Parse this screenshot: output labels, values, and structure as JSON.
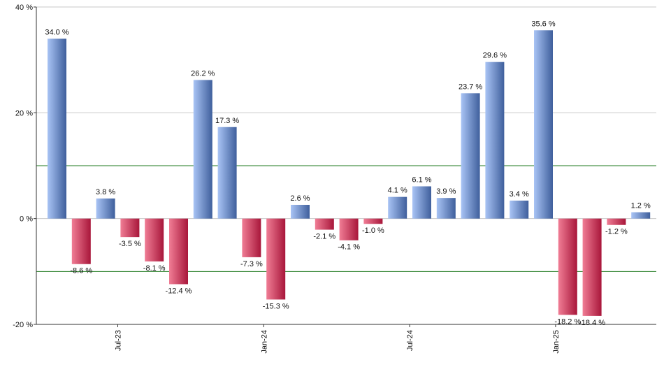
{
  "chart_data": {
    "type": "bar",
    "title": "",
    "xlabel": "",
    "ylabel": "",
    "ylim": [
      -20,
      40
    ],
    "yticks": [
      40,
      20,
      0,
      -20
    ],
    "ytick_labels": [
      "40 %",
      "20 %",
      "0 %",
      "-20 %"
    ],
    "value_suffix": " %",
    "reference_lines": [
      10,
      -10
    ],
    "x_tick_labels": [
      {
        "label": "Jul-23",
        "after_bar": 2
      },
      {
        "label": "Jan-24",
        "after_bar": 8
      },
      {
        "label": "Jul-24",
        "after_bar": 14
      },
      {
        "label": "Jan-25",
        "after_bar": 20
      }
    ],
    "values": [
      34.0,
      -8.6,
      3.8,
      -3.5,
      -8.1,
      -12.4,
      26.2,
      17.3,
      -7.3,
      -15.3,
      2.6,
      -2.1,
      -4.1,
      -1.0,
      4.1,
      6.1,
      3.9,
      23.7,
      29.6,
      3.4,
      35.6,
      -18.2,
      -18.4,
      -1.2,
      1.2
    ],
    "data_labels": [
      "34.0 %",
      "-8.6 %",
      "3.8 %",
      "-3.5 %",
      "-8.1 %",
      "-12.4 %",
      "26.2 %",
      "17.3 %",
      "-7.3 %",
      "-15.3 %",
      "2.6 %",
      "-2.1 %",
      "-4.1 %",
      "-1.0 %",
      "4.1 %",
      "6.1 %",
      "3.9 %",
      "23.7 %",
      "29.6 %",
      "3.4 %",
      "35.6 %",
      "-18.2 %",
      "-18.4 %",
      "-1.2 %",
      "1.2 %"
    ],
    "colors": {
      "positive_light": "#a9c4f5",
      "positive_dark": "#3f5f9c",
      "negative_light": "#f07d95",
      "negative_dark": "#a8163a",
      "grid": "#c8c8c8",
      "reference_line": "#1e7a1e",
      "axis": "#333333"
    }
  }
}
